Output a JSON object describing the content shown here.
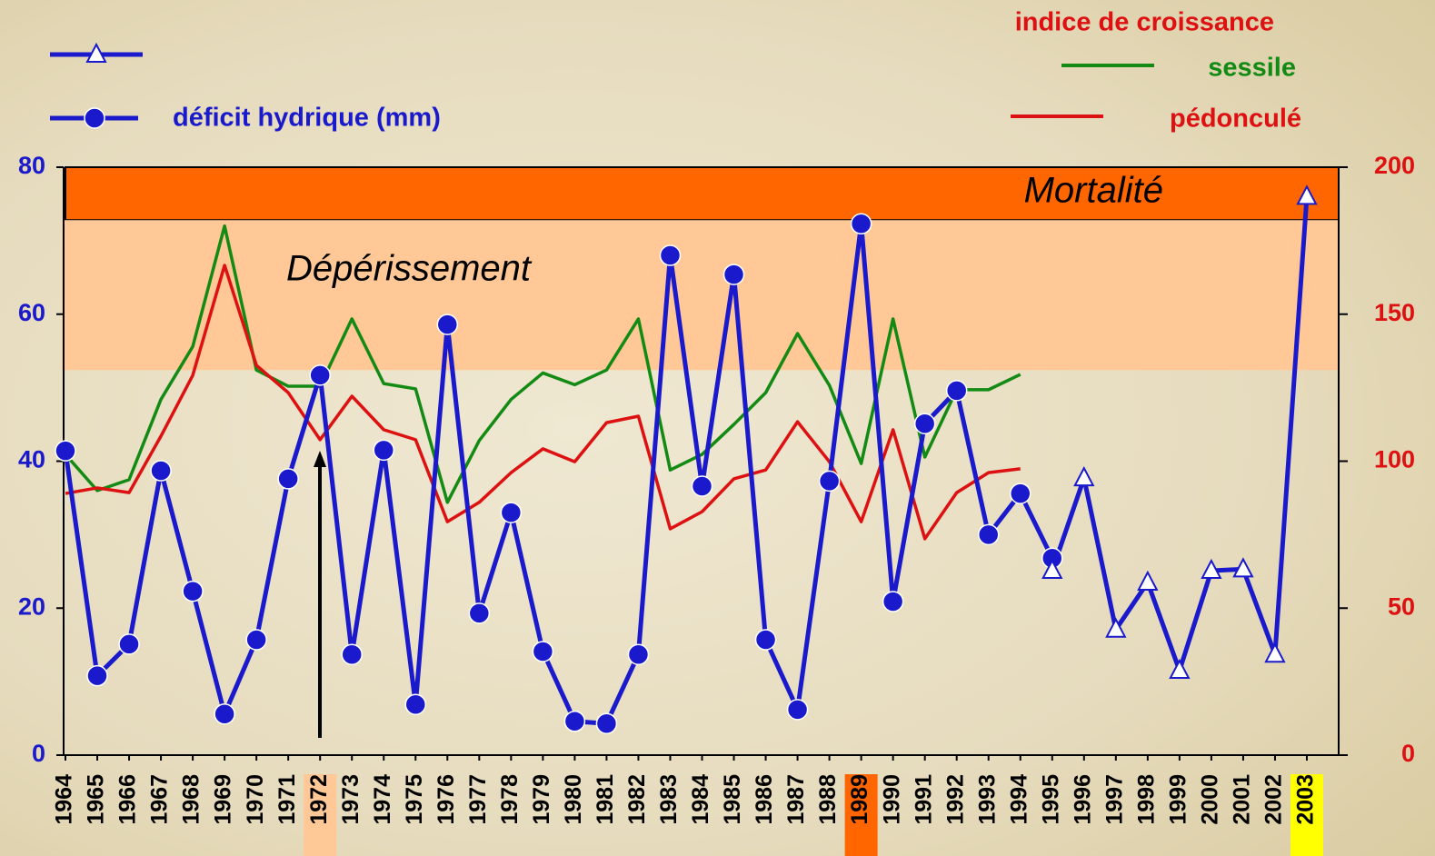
{
  "chart_data": {
    "type": "line",
    "x": [
      1964,
      1965,
      1966,
      1967,
      1968,
      1969,
      1970,
      1971,
      1972,
      1973,
      1974,
      1975,
      1976,
      1977,
      1978,
      1979,
      1980,
      1981,
      1982,
      1983,
      1984,
      1985,
      1986,
      1987,
      1988,
      1989,
      1990,
      1991,
      1992,
      1993,
      1994,
      1995,
      1996,
      1997,
      1998,
      1999,
      2000,
      2001,
      2002,
      2003
    ],
    "xlim": [
      1964,
      2004
    ],
    "xticks": [
      1964,
      1965,
      1966,
      1967,
      1968,
      1969,
      1970,
      1971,
      1972,
      1973,
      1974,
      1975,
      1976,
      1977,
      1978,
      1979,
      1980,
      1981,
      1982,
      1983,
      1984,
      1985,
      1986,
      1987,
      1988,
      1989,
      1990,
      1991,
      1992,
      1993,
      1994,
      1995,
      1996,
      1997,
      1998,
      1999,
      2000,
      2001,
      2002,
      2003
    ],
    "x_highlights": [
      {
        "value": 1972,
        "color": "#ffc896"
      },
      {
        "value": 1989,
        "color": "#ff6600"
      },
      {
        "value": 2003,
        "color": "#ffff00"
      }
    ],
    "ylim": [
      0,
      80
    ],
    "yticks": [
      0,
      20,
      40,
      60,
      80
    ],
    "y2lim": [
      0,
      200
    ],
    "y2ticks": [
      0,
      50,
      100,
      150,
      200
    ],
    "bands": [
      {
        "label": "Mortalité",
        "from": 72.8,
        "to": 80,
        "color": "#ff6600"
      },
      {
        "label": "Dépérissement",
        "from": 52.4,
        "to": 72.8,
        "color": "#ffc896"
      }
    ],
    "y2_legend_title": "indice de croissance",
    "series": [
      {
        "name": "déficit hydrique (mm)",
        "color": "#1a1acc",
        "marker": "circle",
        "values": [
          41.4,
          10.8,
          15.1,
          38.7,
          22.3,
          5.6,
          15.7,
          37.6,
          51.7,
          13.7,
          41.5,
          6.9,
          58.6,
          19.3,
          33.0,
          14.1,
          4.6,
          4.3,
          13.7,
          68.0,
          36.6,
          65.4,
          15.7,
          6.2,
          37.3,
          72.3,
          20.9,
          45.1,
          49.6,
          30.0,
          35.6,
          26.8,
          null,
          null,
          null,
          null,
          null,
          null,
          null,
          null
        ]
      },
      {
        "color": "#1a1acc",
        "marker": "triangle",
        "values": [
          null,
          null,
          null,
          null,
          null,
          null,
          null,
          null,
          null,
          null,
          null,
          null,
          null,
          null,
          null,
          null,
          null,
          null,
          null,
          null,
          null,
          null,
          null,
          null,
          null,
          null,
          null,
          null,
          null,
          null,
          null,
          25.1,
          37.7,
          17.1,
          23.5,
          11.5,
          25.1,
          25.3,
          13.7,
          76.0
        ]
      },
      {
        "name": "sessile",
        "color": "#138a13",
        "axis": "y2",
        "values": [
          102.3,
          90,
          93.7,
          121,
          139,
          180,
          131,
          125.5,
          125.5,
          148.4,
          126.4,
          124.6,
          86,
          107,
          121,
          130,
          126,
          131,
          148.4,
          97,
          102.3,
          112.5,
          123.3,
          143.4,
          125.8,
          99.2,
          148.4,
          101.4,
          124.3,
          124.3,
          129.5,
          null,
          null,
          null,
          null,
          null,
          null,
          null,
          null,
          null
        ]
      },
      {
        "name": "pédonculé",
        "color": "#dd1111",
        "axis": "y2",
        "values": [
          89,
          90.9,
          89.3,
          108.5,
          129.2,
          166.6,
          132.6,
          123.3,
          107.3,
          122.1,
          110.7,
          107.3,
          79.4,
          86,
          96.1,
          104.2,
          99.8,
          113.1,
          115.3,
          77,
          82.8,
          94,
          97,
          113.4,
          99.8,
          79.4,
          110.7,
          73.6,
          89.3,
          96.1,
          97.4,
          null,
          null,
          null,
          null,
          null,
          null,
          null,
          null,
          null
        ]
      }
    ]
  }
}
